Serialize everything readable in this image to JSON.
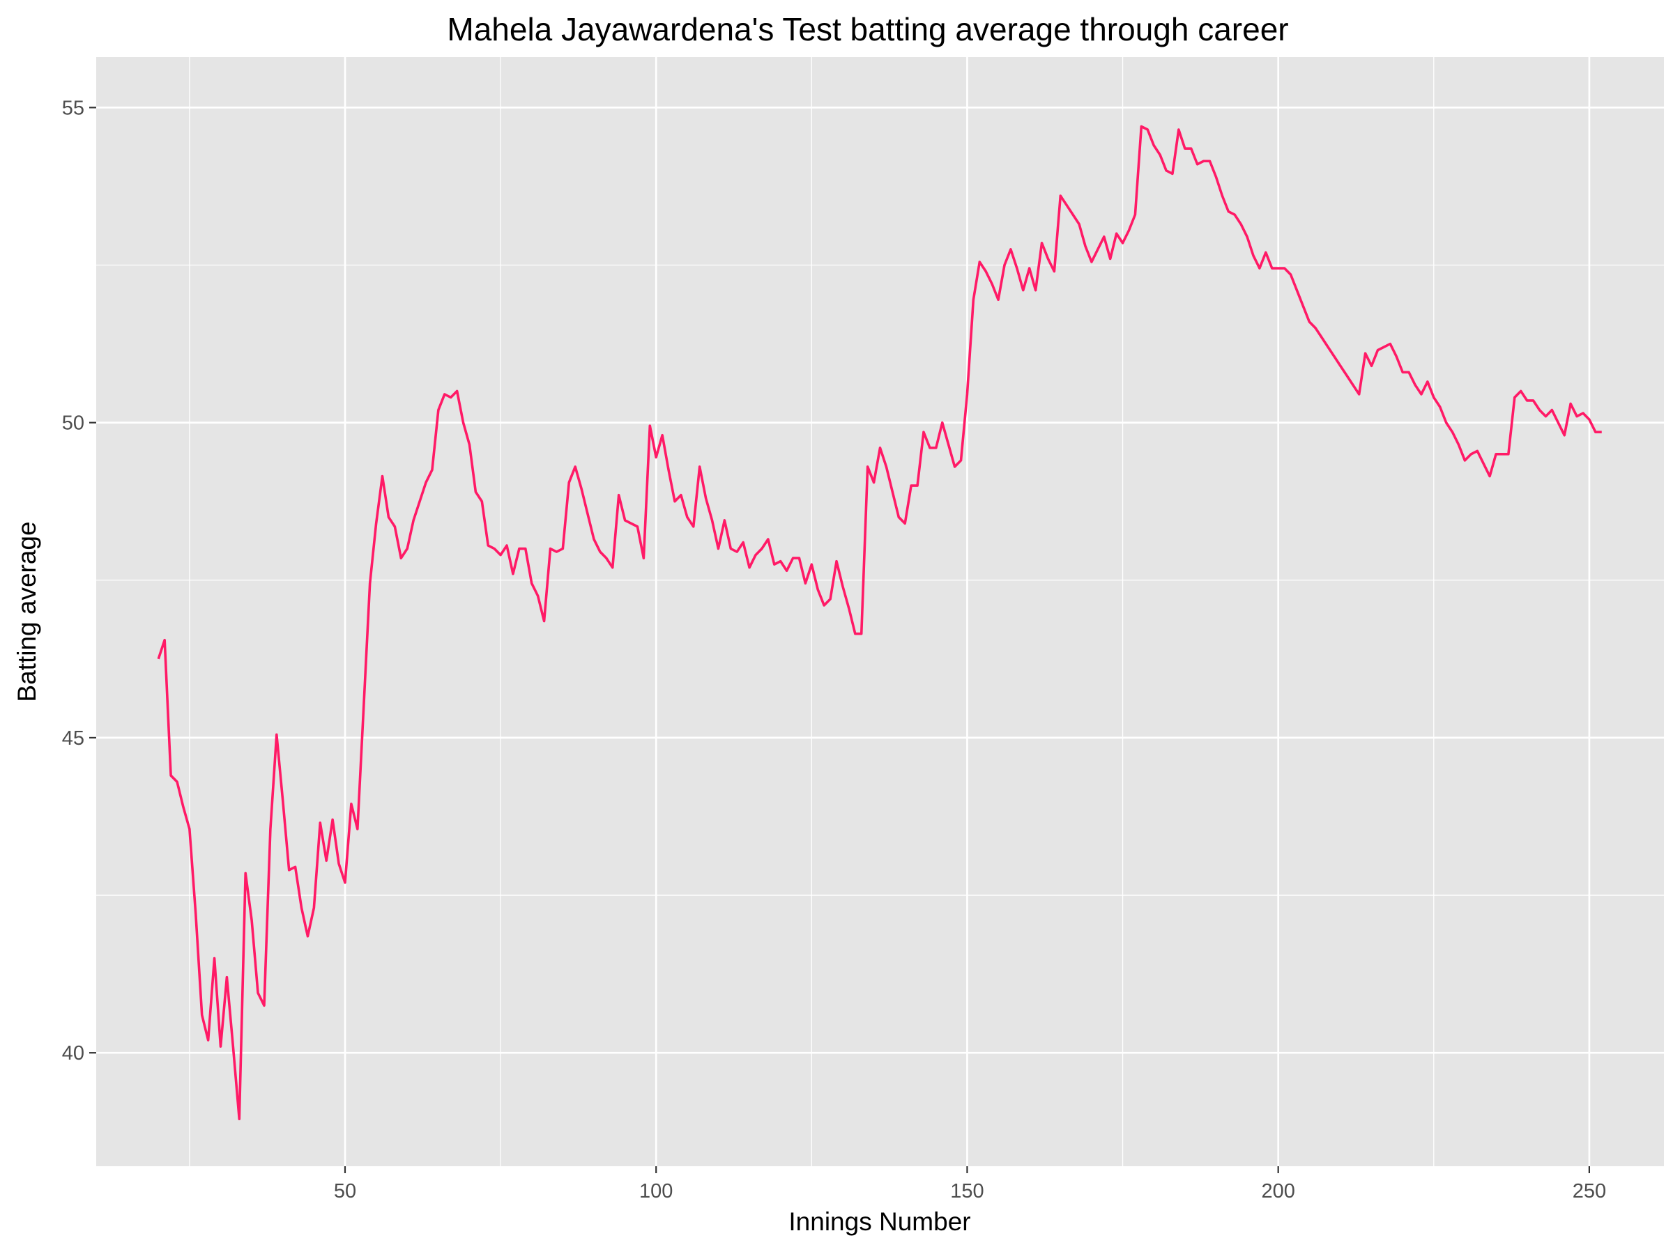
{
  "chart_data": {
    "type": "line",
    "title": "Mahela Jayawardena's Test batting average through career",
    "xlabel": "Innings Number",
    "ylabel": "Batting average",
    "xlim": [
      10,
      262
    ],
    "ylim": [
      38.2,
      55.8
    ],
    "xticks": [
      50,
      100,
      150,
      200,
      250
    ],
    "xtick_labels": [
      "50",
      "100",
      "150",
      "200",
      "250"
    ],
    "yticks": [
      40,
      45,
      50,
      55
    ],
    "ytick_labels": [
      "40",
      "45",
      "50",
      "55"
    ],
    "grid": true,
    "legend": "none",
    "colors": {
      "panel": "#e5e5e5",
      "grid": "#ffffff",
      "line": "#ff1a66",
      "tick": "#4d4d4d"
    },
    "series": [
      {
        "x": [
          20,
          21,
          22,
          23,
          24,
          25,
          26,
          27,
          28,
          29,
          30,
          31,
          32,
          33,
          34,
          35,
          36,
          37,
          38,
          39,
          40,
          41,
          42,
          43,
          44,
          45,
          46,
          47,
          48,
          49,
          50,
          51,
          52,
          53,
          54,
          55,
          56,
          57,
          58,
          59,
          60,
          61,
          62,
          63,
          64,
          65,
          66,
          67,
          68,
          69,
          70,
          71,
          72,
          73,
          74,
          75,
          76,
          77,
          78,
          79,
          80,
          81,
          82,
          83,
          84,
          85,
          86,
          87,
          88,
          89,
          90,
          91,
          92,
          93,
          94,
          95,
          96,
          97,
          98,
          99,
          100,
          101,
          102,
          103,
          104,
          105,
          106,
          107,
          108,
          109,
          110,
          111,
          112,
          113,
          114,
          115,
          116,
          117,
          118,
          119,
          120,
          121,
          122,
          123,
          124,
          125,
          126,
          127,
          128,
          129,
          130,
          131,
          132,
          133,
          134,
          135,
          136,
          137,
          138,
          139,
          140,
          141,
          142,
          143,
          144,
          145,
          146,
          147,
          148,
          149,
          150,
          151,
          152,
          153,
          154,
          155,
          156,
          157,
          158,
          159,
          160,
          161,
          162,
          163,
          164,
          165,
          166,
          167,
          168,
          169,
          170,
          171,
          172,
          173,
          174,
          175,
          176,
          177,
          178,
          179,
          180,
          181,
          182,
          183,
          184,
          185,
          186,
          187,
          188,
          189,
          190,
          191,
          192,
          193,
          194,
          195,
          196,
          197,
          198,
          199,
          200,
          201,
          202,
          203,
          204,
          205,
          206,
          207,
          208,
          209,
          210,
          211,
          212,
          213,
          214,
          215,
          216,
          217,
          218,
          219,
          220,
          221,
          222,
          223,
          224,
          225,
          226,
          227,
          228,
          229,
          230,
          231,
          232,
          233,
          234,
          235,
          236,
          237,
          238,
          239,
          240,
          241,
          242,
          243,
          244,
          245,
          246,
          247,
          248,
          249,
          250,
          251,
          252
        ],
        "y": [
          46.25,
          46.55,
          44.4,
          44.3,
          43.9,
          43.55,
          42.2,
          40.6,
          40.2,
          41.5,
          40.1,
          41.2,
          40.1,
          38.95,
          42.85,
          42.1,
          40.95,
          40.75,
          43.55,
          45.05,
          44.0,
          42.9,
          42.95,
          42.3,
          41.85,
          42.3,
          43.65,
          43.05,
          43.7,
          43.0,
          42.7,
          43.95,
          43.55,
          45.5,
          47.45,
          48.4,
          49.15,
          48.5,
          48.35,
          47.85,
          48.0,
          48.45,
          48.75,
          49.05,
          49.25,
          50.2,
          50.45,
          50.4,
          50.5,
          50.0,
          49.65,
          48.9,
          48.75,
          48.05,
          48.0,
          47.9,
          48.05,
          47.6,
          48.0,
          48.0,
          47.45,
          47.25,
          46.85,
          48.0,
          47.95,
          48.0,
          49.05,
          49.3,
          48.95,
          48.55,
          48.15,
          47.95,
          47.85,
          47.7,
          48.85,
          48.45,
          48.4,
          48.35,
          47.85,
          49.95,
          49.45,
          49.8,
          49.25,
          48.75,
          48.85,
          48.5,
          48.35,
          49.3,
          48.8,
          48.45,
          48.0,
          48.45,
          48.0,
          47.95,
          48.1,
          47.7,
          47.9,
          48.0,
          48.15,
          47.75,
          47.8,
          47.65,
          47.85,
          47.85,
          47.45,
          47.75,
          47.35,
          47.1,
          47.2,
          47.8,
          47.4,
          47.05,
          46.65,
          46.65,
          49.3,
          49.05,
          49.6,
          49.3,
          48.9,
          48.5,
          48.4,
          49.0,
          49.0,
          49.85,
          49.6,
          49.6,
          50.0,
          49.65,
          49.3,
          49.4,
          50.45,
          51.95,
          52.55,
          52.4,
          52.2,
          51.95,
          52.5,
          52.75,
          52.45,
          52.1,
          52.45,
          52.1,
          52.85,
          52.6,
          52.4,
          53.6,
          53.45,
          53.3,
          53.15,
          52.8,
          52.55,
          52.75,
          52.95,
          52.6,
          53.0,
          52.85,
          53.05,
          53.3,
          54.7,
          54.65,
          54.4,
          54.25,
          54.0,
          53.95,
          54.65,
          54.35,
          54.35,
          54.1,
          54.15,
          54.15,
          53.9,
          53.6,
          53.35,
          53.3,
          53.15,
          52.95,
          52.65,
          52.45,
          52.7,
          52.45,
          52.45,
          52.45,
          52.35,
          52.1,
          51.85,
          51.6,
          51.5,
          51.35,
          51.2,
          51.05,
          50.9,
          50.75,
          50.6,
          50.45,
          51.1,
          50.9,
          51.15,
          51.2,
          51.25,
          51.05,
          50.8,
          50.8,
          50.6,
          50.45,
          50.65,
          50.4,
          50.25,
          50.0,
          49.85,
          49.65,
          49.4,
          49.5,
          49.55,
          49.35,
          49.15,
          49.5,
          49.5,
          49.5,
          50.4,
          50.5,
          50.35,
          50.35,
          50.2,
          50.1,
          50.2,
          50.0,
          49.8,
          50.3,
          50.1,
          50.15,
          50.05,
          49.85,
          49.85
        ]
      }
    ]
  }
}
